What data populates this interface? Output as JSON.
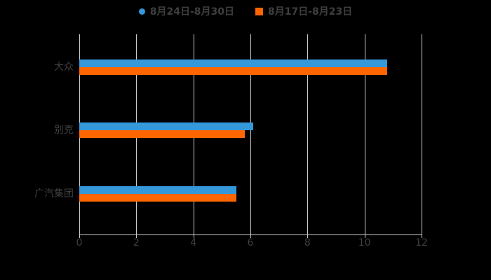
{
  "chart_data": {
    "type": "bar",
    "orientation": "horizontal",
    "title": "",
    "xlabel": "",
    "ylabel": "",
    "categories": [
      "大众",
      "别克",
      "广汽集团"
    ],
    "series": [
      {
        "name": "8月24日-8月30日",
        "color": "#3498db",
        "marker": "circle",
        "values": [
          10.8,
          6.1,
          5.5
        ]
      },
      {
        "name": "8月17日-8月23日",
        "color": "#ff6600",
        "marker": "square",
        "values": [
          10.8,
          5.8,
          5.5
        ]
      }
    ],
    "xlim": [
      0,
      12
    ],
    "xticks": [
      0,
      2,
      4,
      6,
      8,
      10,
      12
    ],
    "grid": true,
    "legend_position": "top",
    "colors": {
      "background": "#000000",
      "text": "#3f3f3f",
      "gridline": "#cccccc",
      "axis": "#cccccc"
    }
  }
}
